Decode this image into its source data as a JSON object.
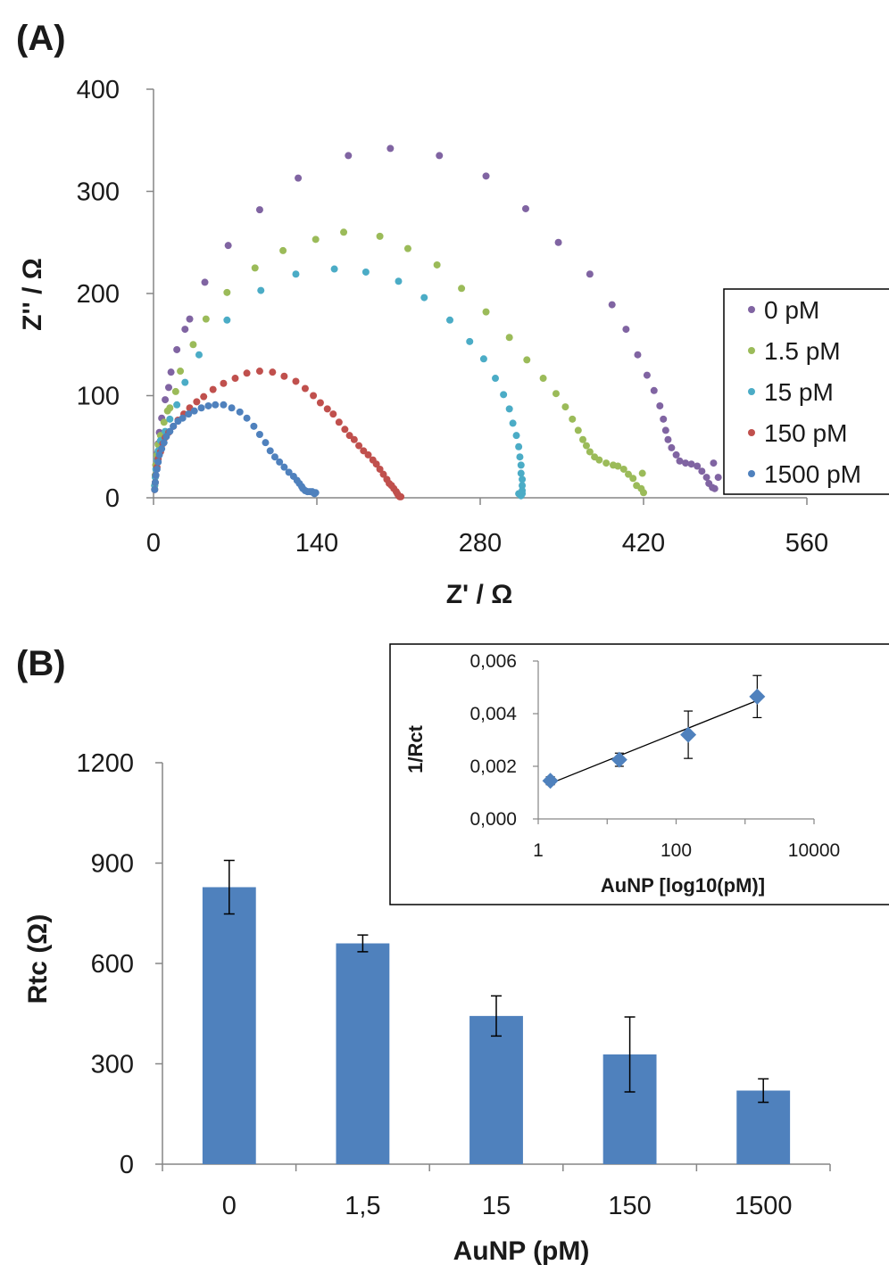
{
  "panel_a": {
    "label": "(A)",
    "chart_data": {
      "type": "scatter",
      "title": "",
      "xlabel": "Z' / Ω",
      "ylabel": "Z'' / Ω",
      "xlim": [
        0,
        560
      ],
      "ylim": [
        0,
        400
      ],
      "xticks": [
        0,
        140,
        280,
        420,
        560
      ],
      "yticks": [
        0,
        100,
        200,
        300,
        400
      ],
      "xtick_labels": [
        "0",
        "140",
        "280",
        "420",
        "560"
      ],
      "ytick_labels": [
        "0",
        "100",
        "200",
        "300",
        "400"
      ],
      "legend_position": "right",
      "series": [
        {
          "name": "0 pM",
          "color": "#8064a2",
          "points": [
            [
              1,
              12
            ],
            [
              1.5,
              22
            ],
            [
              2,
              32
            ],
            [
              3,
              43
            ],
            [
              4,
              53
            ],
            [
              5,
              64
            ],
            [
              7,
              78
            ],
            [
              10,
              96
            ],
            [
              13,
              108
            ],
            [
              15,
              123
            ],
            [
              20,
              145
            ],
            [
              27,
              165
            ],
            [
              31,
              175
            ],
            [
              44,
              211
            ],
            [
              64,
              247
            ],
            [
              91,
              282
            ],
            [
              124,
              313
            ],
            [
              167,
              335
            ],
            [
              203,
              342
            ],
            [
              245,
              335
            ],
            [
              285,
              315
            ],
            [
              319,
              283
            ],
            [
              347,
              250
            ],
            [
              374,
              219
            ],
            [
              393,
              189
            ],
            [
              405,
              165
            ],
            [
              415,
              140
            ],
            [
              423,
              120
            ],
            [
              429,
              105
            ],
            [
              434,
              90
            ],
            [
              437,
              77
            ],
            [
              439,
              66
            ],
            [
              441,
              57
            ],
            [
              444,
              49
            ],
            [
              448,
              42
            ],
            [
              451,
              36
            ],
            [
              456,
              34
            ],
            [
              461,
              33
            ],
            [
              466,
              31
            ],
            [
              470,
              26
            ],
            [
              474,
              20
            ],
            [
              476,
              14
            ],
            [
              479,
              10
            ],
            [
              481,
              9
            ],
            [
              480,
              34
            ],
            [
              484,
              20
            ]
          ]
        },
        {
          "name": "1.5 pM",
          "color": "#9bbb59",
          "points": [
            [
              1,
              12
            ],
            [
              1.5,
              22
            ],
            [
              2,
              32
            ],
            [
              3,
              42
            ],
            [
              4,
              52
            ],
            [
              6,
              61
            ],
            [
              9,
              74
            ],
            [
              12,
              85
            ],
            [
              14,
              88
            ],
            [
              19,
              104
            ],
            [
              23,
              124
            ],
            [
              34,
              150
            ],
            [
              45,
              175
            ],
            [
              63,
              201
            ],
            [
              87,
              225
            ],
            [
              111,
              242
            ],
            [
              139,
              253
            ],
            [
              163,
              260
            ],
            [
              194,
              256
            ],
            [
              218,
              244
            ],
            [
              243,
              228
            ],
            [
              264,
              205
            ],
            [
              285,
              182
            ],
            [
              305,
              157
            ],
            [
              320,
              135
            ],
            [
              334,
              117
            ],
            [
              345,
              102
            ],
            [
              353,
              89
            ],
            [
              359,
              77
            ],
            [
              364,
              66
            ],
            [
              368,
              57
            ],
            [
              371,
              51
            ],
            [
              374,
              45
            ],
            [
              378,
              40
            ],
            [
              382,
              37
            ],
            [
              388,
              34
            ],
            [
              394,
              32
            ],
            [
              398,
              31
            ],
            [
              403,
              28
            ],
            [
              407,
              23
            ],
            [
              411,
              19
            ],
            [
              414,
              12
            ],
            [
              418,
              9
            ],
            [
              420,
              5
            ],
            [
              419,
              24
            ]
          ]
        },
        {
          "name": "15 pM",
          "color": "#4bacc6",
          "points": [
            [
              1,
              12
            ],
            [
              1.5,
              20
            ],
            [
              2,
              28
            ],
            [
              3,
              37
            ],
            [
              4,
              46
            ],
            [
              6,
              56
            ],
            [
              10,
              65
            ],
            [
              14,
              77
            ],
            [
              20,
              91
            ],
            [
              27,
              113
            ],
            [
              39,
              140
            ],
            [
              63,
              174
            ],
            [
              92,
              203
            ],
            [
              122,
              219
            ],
            [
              155,
              224
            ],
            [
              182,
              221
            ],
            [
              210,
              212
            ],
            [
              232,
              196
            ],
            [
              254,
              174
            ],
            [
              271,
              153
            ],
            [
              283,
              136
            ],
            [
              293,
              117
            ],
            [
              300,
              101
            ],
            [
              305,
              87
            ],
            [
              308,
              73
            ],
            [
              311,
              61
            ],
            [
              313,
              50
            ],
            [
              314,
              40
            ],
            [
              315,
              32
            ],
            [
              315,
              24
            ],
            [
              316,
              18
            ],
            [
              316,
              12
            ],
            [
              316,
              7
            ],
            [
              316,
              4
            ],
            [
              315,
              2
            ],
            [
              313,
              4
            ]
          ]
        },
        {
          "name": "150 pM",
          "color": "#c0504d",
          "points": [
            [
              1,
              8
            ],
            [
              1.5,
              15
            ],
            [
              2,
              22
            ],
            [
              3,
              30
            ],
            [
              4,
              38
            ],
            [
              6,
              45
            ],
            [
              8,
              53
            ],
            [
              10,
              59
            ],
            [
              13,
              64
            ],
            [
              17,
              70
            ],
            [
              21,
              76
            ],
            [
              26,
              82
            ],
            [
              31,
              88
            ],
            [
              37,
              94
            ],
            [
              43,
              99
            ],
            [
              51,
              106
            ],
            [
              60,
              112
            ],
            [
              70,
              117
            ],
            [
              80,
              122
            ],
            [
              91,
              124
            ],
            [
              102,
              123
            ],
            [
              112,
              119
            ],
            [
              122,
              114
            ],
            [
              130,
              107
            ],
            [
              137,
              100
            ],
            [
              143,
              93
            ],
            [
              149,
              87
            ],
            [
              154,
              82
            ],
            [
              159,
              74
            ],
            [
              164,
              67
            ],
            [
              168,
              61
            ],
            [
              172,
              57
            ],
            [
              176,
              51
            ],
            [
              180,
              46
            ],
            [
              184,
              42
            ],
            [
              188,
              37
            ],
            [
              191,
              33
            ],
            [
              194,
              28
            ],
            [
              197,
              23
            ],
            [
              200,
              18
            ],
            [
              202,
              14
            ],
            [
              204,
              12
            ],
            [
              206,
              9
            ],
            [
              208,
              6
            ],
            [
              209,
              4
            ],
            [
              210,
              2
            ],
            [
              211,
              1
            ],
            [
              212,
              1
            ]
          ]
        },
        {
          "name": "1500 pM",
          "color": "#4f81bd",
          "points": [
            [
              1,
              8
            ],
            [
              1.5,
              15
            ],
            [
              2,
              22
            ],
            [
              3,
              28
            ],
            [
              4,
              35
            ],
            [
              5,
              42
            ],
            [
              7,
              48
            ],
            [
              9,
              54
            ],
            [
              11,
              60
            ],
            [
              14,
              65
            ],
            [
              17,
              70
            ],
            [
              21,
              75
            ],
            [
              25,
              78
            ],
            [
              30,
              82
            ],
            [
              35,
              85
            ],
            [
              41,
              88
            ],
            [
              47,
              90
            ],
            [
              53,
              91
            ],
            [
              60,
              91
            ],
            [
              67,
              88
            ],
            [
              74,
              84
            ],
            [
              80,
              78
            ],
            [
              86,
              70
            ],
            [
              91,
              62
            ],
            [
              96,
              54
            ],
            [
              100,
              46
            ],
            [
              104,
              40
            ],
            [
              108,
              35
            ],
            [
              112,
              30
            ],
            [
              116,
              25
            ],
            [
              120,
              21
            ],
            [
              123,
              17
            ],
            [
              125,
              14
            ],
            [
              127,
              11
            ],
            [
              128,
              9
            ],
            [
              130,
              7
            ],
            [
              132,
              6
            ],
            [
              134,
              6
            ],
            [
              136,
              6
            ],
            [
              137,
              5
            ],
            [
              138,
              4
            ],
            [
              139,
              5
            ]
          ]
        }
      ]
    }
  },
  "panel_b": {
    "label": "(B)",
    "chart_data": {
      "type": "bar",
      "title": "",
      "xlabel": "AuNP (pM)",
      "ylabel": "Rtc (Ω)",
      "categories": [
        "0",
        "1,5",
        "15",
        "150",
        "1500"
      ],
      "values": [
        828,
        660,
        443,
        328,
        220
      ],
      "errors": [
        80,
        25,
        60,
        112,
        35
      ],
      "ylim": [
        0,
        1200
      ],
      "yticks": [
        0,
        300,
        600,
        900,
        1200
      ],
      "ytick_labels": [
        "0",
        "300",
        "600",
        "900",
        "1200"
      ],
      "bar_color": "#4f81bd"
    },
    "inset": {
      "chart_data": {
        "type": "scatter",
        "title": "",
        "xlabel": "AuNP [log10(pM)]",
        "ylabel": "1/Rct",
        "x_scale": "log",
        "xlim": [
          1,
          10000
        ],
        "ylim": [
          0,
          0.006
        ],
        "xticks": [
          1,
          100,
          10000
        ],
        "xtick_labels": [
          "1",
          "100",
          "10000"
        ],
        "yticks": [
          0,
          0.002,
          0.004,
          0.006
        ],
        "ytick_labels": [
          "0,000",
          "0,002",
          "0,004",
          "0,006"
        ],
        "x": [
          1.5,
          15,
          150,
          1500
        ],
        "y": [
          0.00145,
          0.00225,
          0.0032,
          0.00465
        ],
        "errors": [
          0.00015,
          0.00025,
          0.0009,
          0.0008
        ],
        "trendline": {
          "x": [
            1.5,
            1500
          ],
          "y": [
            0.00135,
            0.0045
          ]
        },
        "marker_color": "#4f81bd"
      }
    }
  }
}
